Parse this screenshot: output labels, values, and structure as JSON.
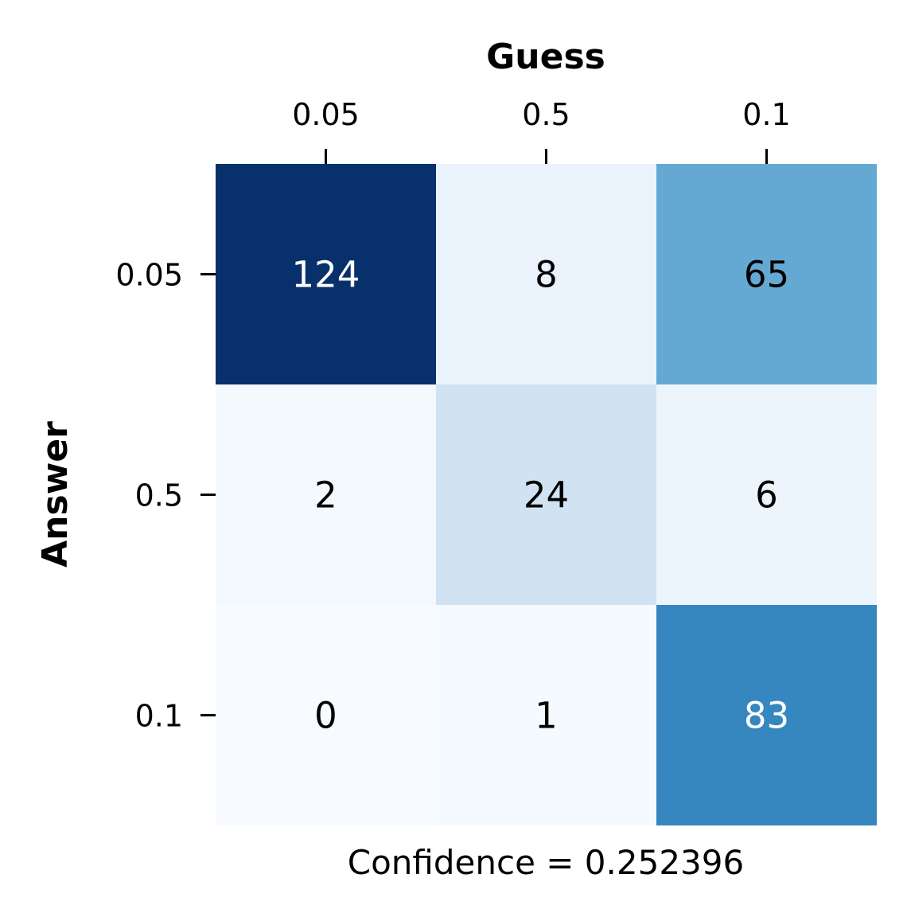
{
  "chart_data": {
    "type": "heatmap",
    "xlabel": "Guess",
    "ylabel": "Answer",
    "x_categories": [
      "0.05",
      "0.5",
      "0.1"
    ],
    "y_categories": [
      "0.05",
      "0.5",
      "0.1"
    ],
    "values": [
      [
        124,
        8,
        65
      ],
      [
        2,
        24,
        6
      ],
      [
        0,
        1,
        83
      ]
    ],
    "colormap": "Blues",
    "color_range": [
      0,
      124
    ],
    "x_ticks_position": "top",
    "colorbar": false,
    "footer": "Confidence = 0.252396"
  }
}
